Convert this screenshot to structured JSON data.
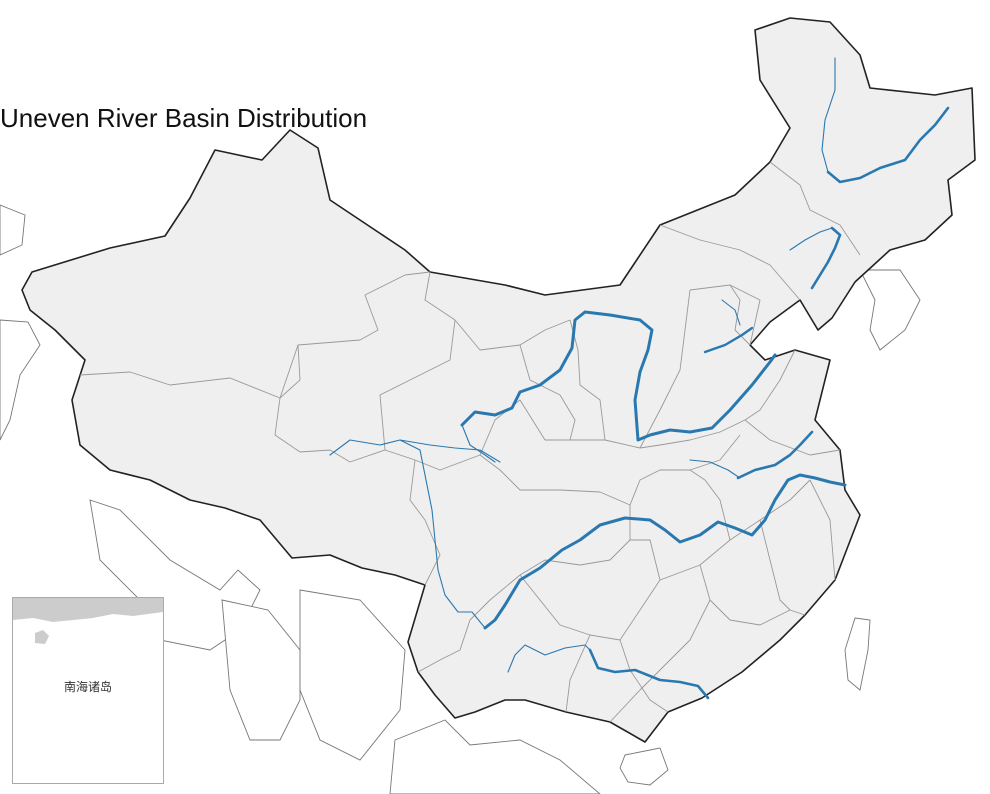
{
  "map": {
    "title": "Uneven River Basin Distribution",
    "inset_label": "南海诸岛",
    "colors": {
      "land_fill": "#efefef",
      "neighbor_fill": "#ffffff",
      "border": "#222222",
      "province_border": "#999999",
      "river": "#2a78b0",
      "inset_land": "#cccccc"
    }
  }
}
